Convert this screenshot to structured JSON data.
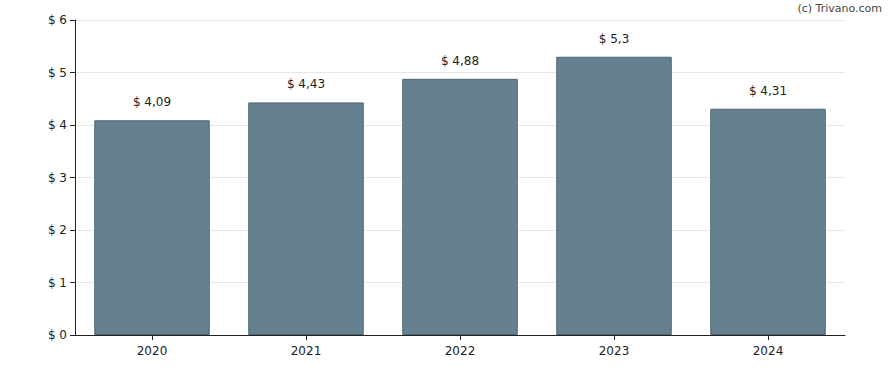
{
  "chart_data": {
    "type": "bar",
    "annotations": [
      "(c) Trivano.com"
    ],
    "categories": [
      "2020",
      "2021",
      "2022",
      "2023",
      "2024"
    ],
    "values": [
      4.09,
      4.43,
      4.88,
      5.3,
      4.31
    ],
    "value_labels": [
      "$ 4,09",
      "$ 4,43",
      "$ 4,88",
      "$ 5,3",
      "$ 4,31"
    ],
    "data_labels": true,
    "color": "#65808f",
    "ylim": [
      0,
      6
    ],
    "yticks": [
      {
        "value": 0,
        "label": "$ 0"
      },
      {
        "value": 1,
        "label": "$ 1"
      },
      {
        "value": 2,
        "label": "$ 2"
      },
      {
        "value": 3,
        "label": "$ 3"
      },
      {
        "value": 4,
        "label": "$ 4"
      },
      {
        "value": 5,
        "label": "$ 5"
      },
      {
        "value": 6,
        "label": "$ 6"
      }
    ],
    "grid": true
  }
}
